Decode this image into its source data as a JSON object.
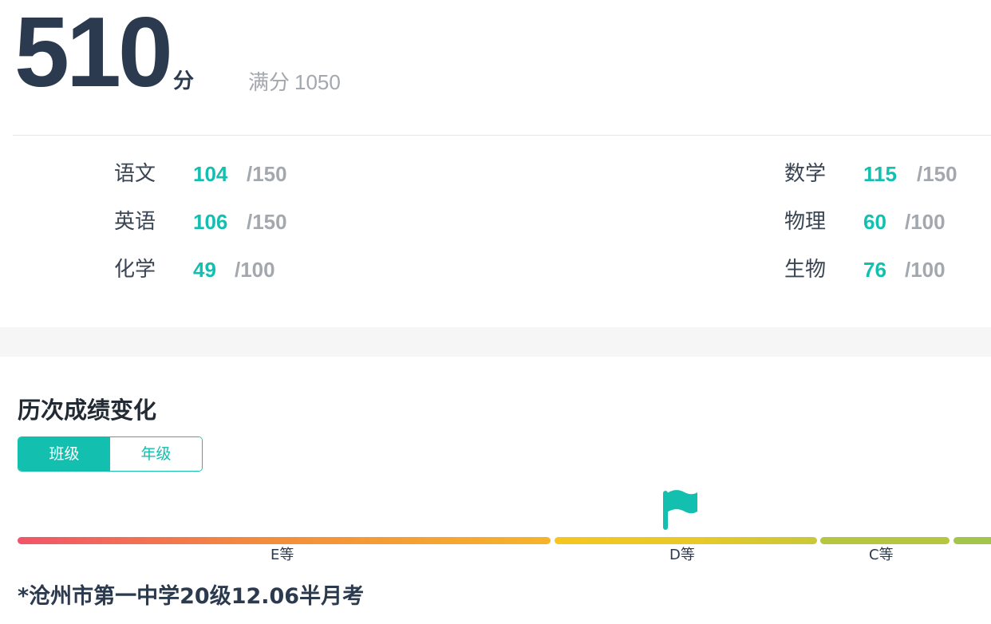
{
  "summary": {
    "total_score": "510",
    "score_unit": "分",
    "full_score_label": "满分",
    "full_score_value": "1050"
  },
  "subjects": [
    {
      "name": "语文",
      "score": "104",
      "max": "/150"
    },
    {
      "name": "数学",
      "score": "115",
      "max": "/150"
    },
    {
      "name": "英语",
      "score": "106",
      "max": "/150"
    },
    {
      "name": "物理",
      "score": "60",
      "max": "/100"
    },
    {
      "name": "化学",
      "score": "49",
      "max": "/100"
    },
    {
      "name": "生物",
      "score": "76",
      "max": "/100"
    }
  ],
  "history": {
    "title": "历次成绩变化",
    "toggle": {
      "class_label": "班级",
      "grade_label": "年级",
      "selected": "班级"
    },
    "grade_scale": {
      "labels": {
        "e": "E等",
        "d": "D等",
        "c": "C等"
      },
      "current_grade": "D等",
      "marker_icon": "flag-icon",
      "colors": {
        "e_start": "#f2546a",
        "e_end": "#f6b42a",
        "d": "#e8c928",
        "c": "#b7c640",
        "b": "#a3c64a"
      }
    },
    "exam_name": "*沧州市第一中学20级12.06半月考"
  },
  "theme": {
    "accent": "#13bfae",
    "text_dark": "#2b3a4e",
    "text_muted": "#a3a8ae"
  }
}
